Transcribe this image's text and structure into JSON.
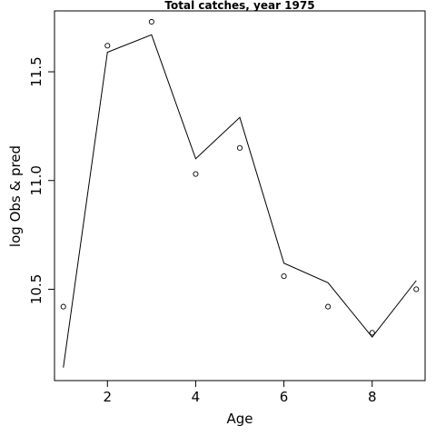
{
  "chart_data": {
    "type": "line",
    "title": "Total catches, year 1975",
    "xlabel": "Age",
    "ylabel": "log Obs & pred",
    "xlim": [
      0.8,
      9.2
    ],
    "ylim": [
      10.08,
      11.78
    ],
    "x_ticks": [
      2,
      4,
      6,
      8
    ],
    "x_tick_labels": [
      "2",
      "4",
      "6",
      "8"
    ],
    "y_ticks": [
      10.5,
      11.0,
      11.5
    ],
    "y_tick_labels": [
      "10.5",
      "11.0",
      "11.5"
    ],
    "grid": false,
    "legend": null,
    "series": [
      {
        "style": "points",
        "marker": "open-circle",
        "x": [
          1,
          2,
          3,
          4,
          5,
          6,
          7,
          8,
          9
        ],
        "y": [
          10.42,
          11.62,
          11.73,
          11.03,
          11.15,
          10.56,
          10.42,
          10.3,
          10.5
        ]
      },
      {
        "style": "line",
        "x": [
          1,
          2,
          3,
          4,
          5,
          6,
          7,
          8,
          9
        ],
        "y": [
          10.14,
          11.59,
          11.67,
          11.1,
          11.29,
          10.62,
          10.53,
          10.28,
          10.54
        ]
      }
    ],
    "colors": {
      "line": "#000000",
      "points": "#000000",
      "axes": "#000000"
    }
  }
}
